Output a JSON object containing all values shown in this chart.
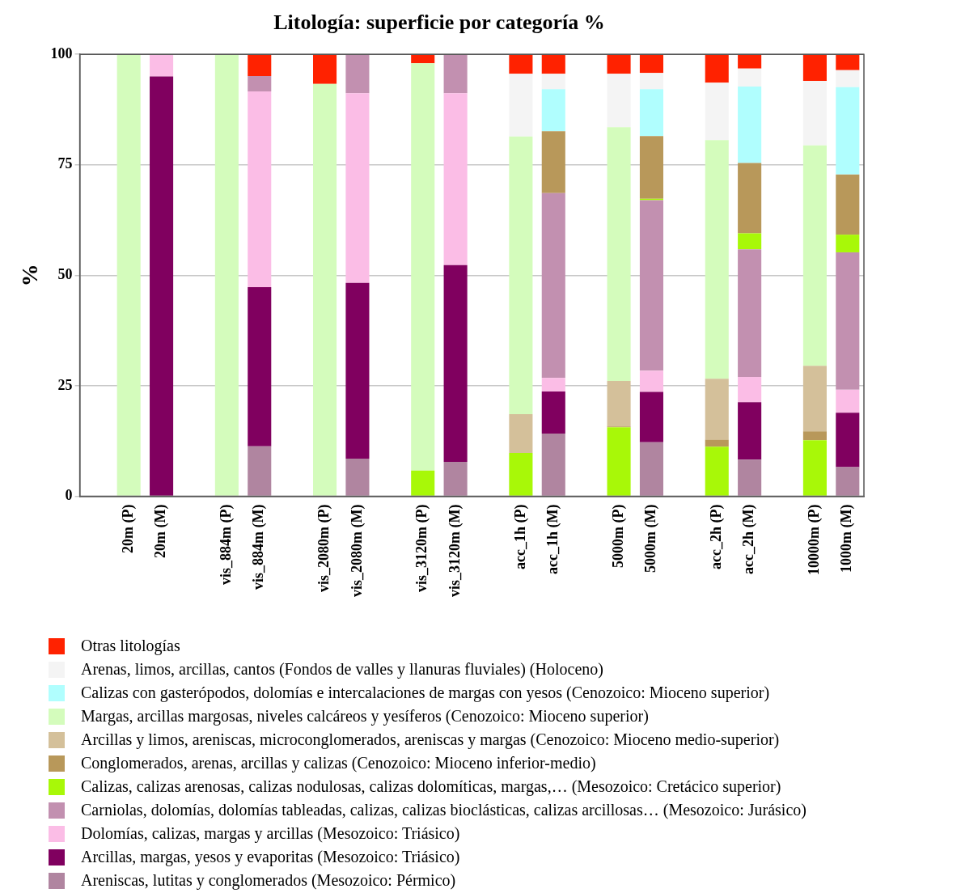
{
  "chart_data": {
    "type": "bar",
    "title": "Litología: superficie por categoría %",
    "ylabel": "%",
    "stacked": true,
    "grid": "y",
    "legend": "bottom",
    "ylim": [
      0,
      100
    ],
    "yticks": [
      0,
      25,
      50,
      75,
      100
    ],
    "categories": [
      null,
      "20m (P)",
      "20m (M)",
      null,
      "vis_884m (P)",
      "vis_884m (M)",
      null,
      "vis_2080m (P)",
      "vis_2080m (M)",
      null,
      "vis_3120m (P)",
      "vis_3120m (M)",
      null,
      "acc_1h (P)",
      "acc_1h (M)",
      null,
      "5000m (P)",
      "5000m (M)",
      null,
      "acc_2h (P)",
      "acc_2h (M)",
      null,
      "10000m (P)",
      "1000m (M)"
    ],
    "series": [
      {
        "name": "Areniscas, lutitas y conglomerados (Mesozoico: Pérmico)",
        "color": "#b085a0",
        "values": [
          null,
          null,
          null,
          null,
          null,
          11.3,
          null,
          null,
          8.5,
          null,
          null,
          7.8,
          null,
          null,
          14.2,
          null,
          null,
          12.2,
          null,
          null,
          8.3,
          null,
          null,
          6.6
        ]
      },
      {
        "name": "Arcillas, margas, yesos y evaporitas (Mesozoico: Triásico)",
        "color": "#80005f",
        "values": [
          null,
          null,
          95,
          null,
          null,
          36.0,
          null,
          null,
          39.8,
          null,
          null,
          44.5,
          null,
          null,
          9.5,
          null,
          null,
          11.4,
          null,
          null,
          13.0,
          null,
          null,
          12.3
        ]
      },
      {
        "name": "Dolomías, calizas, margas y arcillas (Mesozoico: Triásico)",
        "color": "#fbbde6",
        "values": [
          null,
          null,
          5,
          null,
          null,
          44.3,
          null,
          null,
          42.9,
          null,
          null,
          38.9,
          null,
          null,
          3.1,
          null,
          null,
          4.8,
          null,
          null,
          5.7,
          null,
          null,
          5.2
        ]
      },
      {
        "name": "Carniolas, dolomías, dolomías tableadas, calizas, calizas bioclásticas, calizas arcillosas… (Mesozoico: Jurásico)",
        "color": "#c290b0",
        "values": [
          null,
          null,
          null,
          null,
          null,
          3.5,
          null,
          null,
          8.8,
          null,
          null,
          8.8,
          null,
          null,
          41.8,
          null,
          null,
          38.6,
          null,
          null,
          28.9,
          null,
          null,
          31.1
        ]
      },
      {
        "name": "Calizas, calizas arenosas, calizas nodulosas, calizas dolomíticas, margas,… (Mesozoico: Cretácico superior)",
        "color": "#a8f808",
        "values": [
          null,
          null,
          null,
          null,
          null,
          null,
          null,
          null,
          null,
          null,
          5.8,
          null,
          null,
          9.8,
          null,
          null,
          15.6,
          0.3,
          null,
          11.2,
          3.6,
          null,
          12.7,
          4.0
        ]
      },
      {
        "name": "Conglomerados, arenas, arcillas y calizas (Cenozoico: Mioceno inferior-medio)",
        "color": "#b8985a",
        "values": [
          null,
          null,
          null,
          null,
          null,
          null,
          null,
          null,
          null,
          null,
          null,
          null,
          null,
          null,
          14.0,
          null,
          0.2,
          14.2,
          null,
          1.6,
          15.9,
          null,
          2.0,
          13.6
        ]
      },
      {
        "name": "Arcillas y limos, areniscas, microconglomerados, areniscas y margas (Cenozoico: Mioceno medio-superior)",
        "color": "#d4c09a",
        "values": [
          null,
          null,
          null,
          null,
          null,
          null,
          null,
          null,
          null,
          null,
          null,
          null,
          null,
          8.8,
          null,
          null,
          10.3,
          null,
          null,
          13.8,
          null,
          null,
          14.8,
          null
        ]
      },
      {
        "name": "Margas, arcillas margosas, niveles calcáreos y yesíferos (Cenozoico: Mioceno superior)",
        "color": "#d4fcbc",
        "values": [
          null,
          100,
          null,
          null,
          100,
          null,
          null,
          93.3,
          null,
          null,
          92.2,
          null,
          null,
          62.8,
          null,
          null,
          57.4,
          null,
          null,
          54.0,
          null,
          null,
          49.9,
          null
        ]
      },
      {
        "name": "Calizas con gasterópodos, dolomías e intercalaciones de margas con yesos (Cenozoico: Mioceno superior)",
        "color": "#b0fefe",
        "values": [
          null,
          null,
          null,
          null,
          null,
          null,
          null,
          null,
          null,
          null,
          null,
          null,
          null,
          null,
          9.5,
          null,
          null,
          10.6,
          null,
          null,
          17.3,
          null,
          null,
          19.8
        ]
      },
      {
        "name": "Arenas, limos, arcillas, cantos (Fondos de valles y llanuras fluviales) (Holoceno)",
        "color": "#f4f4f4",
        "values": [
          null,
          null,
          null,
          null,
          null,
          null,
          null,
          null,
          null,
          null,
          null,
          null,
          null,
          14.2,
          3.5,
          null,
          12.1,
          3.7,
          null,
          13.0,
          4.1,
          null,
          14.6,
          3.8
        ]
      },
      {
        "name": "Otras litologías",
        "color": "#ff2200",
        "values": [
          null,
          null,
          null,
          null,
          null,
          4.9,
          null,
          6.7,
          null,
          null,
          2.0,
          null,
          null,
          4.4,
          4.4,
          null,
          4.4,
          4.2,
          null,
          6.4,
          3.2,
          null,
          6.0,
          3.6
        ]
      }
    ]
  }
}
